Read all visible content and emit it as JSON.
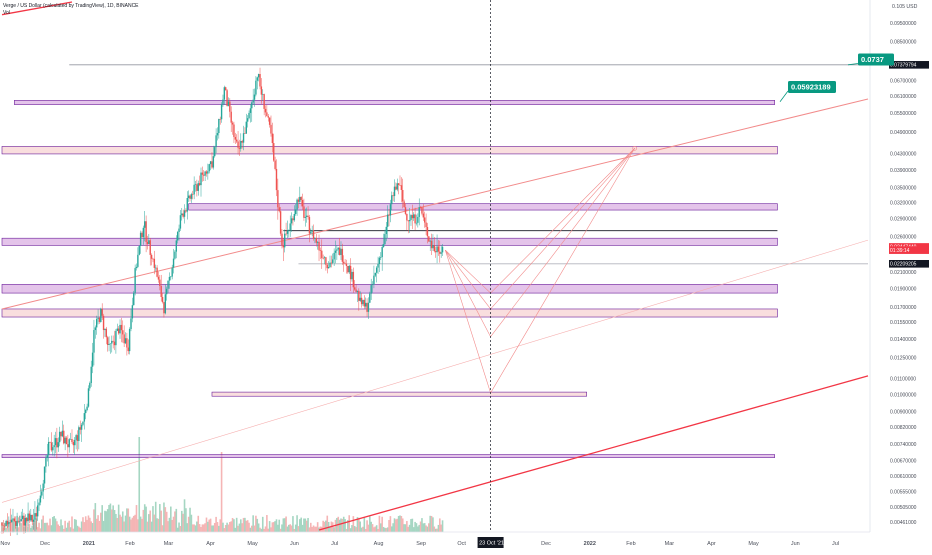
{
  "header": {
    "symbol_line": "Verge / US Dollar (calculated by TradingView), 1D, BINANCE",
    "volume_label": "Vol"
  },
  "top_price_label": "0.105 USD",
  "callouts": [
    {
      "text": "0.0737",
      "price": 0.0762
    },
    {
      "text": "0.05923189",
      "price": 0.0645
    }
  ],
  "price_badges": [
    {
      "text": "0.07379794",
      "price": 0.07379794,
      "color": "#131722"
    },
    {
      "text": "0.02447440",
      "price": 0.02447,
      "color": "#f23645"
    },
    {
      "text": "01:39:14",
      "price": 0.024,
      "color": "#f23645"
    },
    {
      "text": "0.02209205",
      "price": 0.02209205,
      "color": "#131722"
    }
  ],
  "crosshair_date": "23 Oct '21",
  "chart_data": {
    "type": "candlestick",
    "title": "Verge / US Dollar (calculated by TradingView), 1D, BINANCE",
    "xlabel": "",
    "ylabel": "USD",
    "y_scale": "log",
    "ylim": [
      0.0044,
      0.108
    ],
    "y_ticks": [
      "0.09500000",
      "0.08500000",
      "0.07379794",
      "0.06700000",
      "0.06100000",
      "0.05500000",
      "0.04900000",
      "0.04300000",
      "0.03900000",
      "0.03500000",
      "0.03200000",
      "0.02900000",
      "0.02600000",
      "0.02100000",
      "0.01900000",
      "0.01700000",
      "0.01550000",
      "0.01400000",
      "0.01250000",
      "0.01100000",
      "0.01000000",
      "0.00900000",
      "0.00820000",
      "0.00740000",
      "0.00670000",
      "0.00610000",
      "0.00555000",
      "0.00505000",
      "0.00461000"
    ],
    "x_ticks": [
      "Nov",
      "Dec",
      "2021",
      "Feb",
      "Mar",
      "Apr",
      "May",
      "Jun",
      "Jul",
      "Aug",
      "Sep",
      "Oct",
      "Dec",
      "2022",
      "Feb",
      "Mar",
      "Apr",
      "May",
      "Jun",
      "Jul"
    ],
    "x_range": [
      "2020-11-01",
      "2022-07-25"
    ],
    "price_path": [
      [
        "2020-11-01",
        0.0046
      ],
      [
        "2020-11-25",
        0.0047
      ],
      [
        "2020-12-05",
        0.0072
      ],
      [
        "2020-12-14",
        0.0078
      ],
      [
        "2020-12-22",
        0.0072
      ],
      [
        "2020-12-30",
        0.0085
      ],
      [
        "2021-01-03",
        0.01
      ],
      [
        "2021-01-07",
        0.0145
      ],
      [
        "2021-01-12",
        0.0165
      ],
      [
        "2021-01-18",
        0.013
      ],
      [
        "2021-01-25",
        0.015
      ],
      [
        "2021-02-01",
        0.0135
      ],
      [
        "2021-02-06",
        0.021
      ],
      [
        "2021-02-12",
        0.028
      ],
      [
        "2021-02-20",
        0.022
      ],
      [
        "2021-02-27",
        0.017
      ],
      [
        "2021-03-05",
        0.022
      ],
      [
        "2021-03-12",
        0.03
      ],
      [
        "2021-03-20",
        0.034
      ],
      [
        "2021-03-28",
        0.038
      ],
      [
        "2021-04-04",
        0.042
      ],
      [
        "2021-04-12",
        0.064
      ],
      [
        "2021-04-17",
        0.052
      ],
      [
        "2021-04-22",
        0.043
      ],
      [
        "2021-04-30",
        0.054
      ],
      [
        "2021-05-06",
        0.07
      ],
      [
        "2021-05-10",
        0.06
      ],
      [
        "2021-05-16",
        0.048
      ],
      [
        "2021-05-20",
        0.035
      ],
      [
        "2021-05-24",
        0.025
      ],
      [
        "2021-05-30",
        0.028
      ],
      [
        "2021-06-05",
        0.033
      ],
      [
        "2021-06-12",
        0.028
      ],
      [
        "2021-06-20",
        0.0245
      ],
      [
        "2021-06-27",
        0.022
      ],
      [
        "2021-07-05",
        0.024
      ],
      [
        "2021-07-12",
        0.0215
      ],
      [
        "2021-07-20",
        0.0175
      ],
      [
        "2021-07-25",
        0.017
      ],
      [
        "2021-08-01",
        0.0215
      ],
      [
        "2021-08-07",
        0.026
      ],
      [
        "2021-08-12",
        0.033
      ],
      [
        "2021-08-17",
        0.036
      ],
      [
        "2021-08-22",
        0.03
      ],
      [
        "2021-08-29",
        0.029
      ],
      [
        "2021-09-02",
        0.031
      ],
      [
        "2021-09-06",
        0.027
      ],
      [
        "2021-09-12",
        0.024
      ],
      [
        "2021-09-18",
        0.0245
      ]
    ],
    "horizontal_zones": [
      {
        "low": 0.058,
        "high": 0.0595,
        "x_start": "2020-11-10",
        "x_end": "2022-05-18",
        "color": "#ce93d8"
      },
      {
        "low": 0.043,
        "high": 0.045,
        "x_start": "2020-11-01",
        "x_end": "2022-05-20",
        "color": "#f4c2c2"
      },
      {
        "low": 0.0306,
        "high": 0.0318,
        "x_start": "2021-03-17",
        "x_end": "2022-05-20",
        "color": "#ce93d8"
      },
      {
        "low": 0.0247,
        "high": 0.0258,
        "x_start": "2020-11-01",
        "x_end": "2022-05-20",
        "color": "#ce93d8"
      },
      {
        "low": 0.0185,
        "high": 0.0195,
        "x_start": "2020-11-01",
        "x_end": "2022-05-20",
        "color": "#ce93d8"
      },
      {
        "low": 0.016,
        "high": 0.0168,
        "x_start": "2020-11-01",
        "x_end": "2022-05-20",
        "color": "#f4c2c2"
      },
      {
        "low": 0.0099,
        "high": 0.01015,
        "x_start": "2021-04-03",
        "x_end": "2022-01-01",
        "color": "#f4c2c2"
      },
      {
        "low": 0.00687,
        "high": 0.00695,
        "x_start": "2020-11-01",
        "x_end": "2022-05-18",
        "color": "#ce93d8"
      }
    ],
    "horizontal_lines": [
      {
        "price": 0.07379794,
        "x_start": "2020-12-20",
        "x_end": "2022-07-25",
        "color": "#9598a1"
      },
      {
        "price": 0.027,
        "x_start": "2021-05-25",
        "x_end": "2022-05-20",
        "color": "#131722"
      },
      {
        "price": 0.02209205,
        "x_start": "2021-06-05",
        "x_end": "2022-07-25",
        "color": "#b2b5be"
      }
    ],
    "trend_lines": [
      {
        "from": [
          "2020-11-01",
          0.0168
        ],
        "to": [
          "2022-07-25",
          0.06
        ],
        "color": "#f28b8b",
        "width": 1
      },
      {
        "from": [
          "2020-11-01",
          0.0052
        ],
        "to": [
          "2022-07-25",
          0.0255
        ],
        "color": "#f6b0b0",
        "width": 0.6
      },
      {
        "from": [
          "2021-06-20",
          0.0044
        ],
        "to": [
          "2022-07-25",
          0.0112
        ],
        "color": "#f23645",
        "width": 1.3
      },
      {
        "from": [
          "2020-11-01",
          0.1
        ],
        "to": [
          "2020-12-22",
          0.108
        ],
        "color": "#f23645",
        "width": 1.3
      }
    ],
    "projection_fan": {
      "origin": [
        "2021-09-20",
        0.024
      ],
      "targets": [
        [
          "2021-10-23",
          0.0185
        ],
        [
          "2021-10-23",
          0.0168
        ],
        [
          "2021-10-23",
          0.0142
        ],
        [
          "2021-10-23",
          0.0101
        ]
      ],
      "apex": [
        "2022-02-05",
        0.0445
      ],
      "color": "#f28b8b"
    },
    "crosshair_x": "2021-10-23",
    "volume_max_note": "relative volume bars shown at bottom"
  }
}
